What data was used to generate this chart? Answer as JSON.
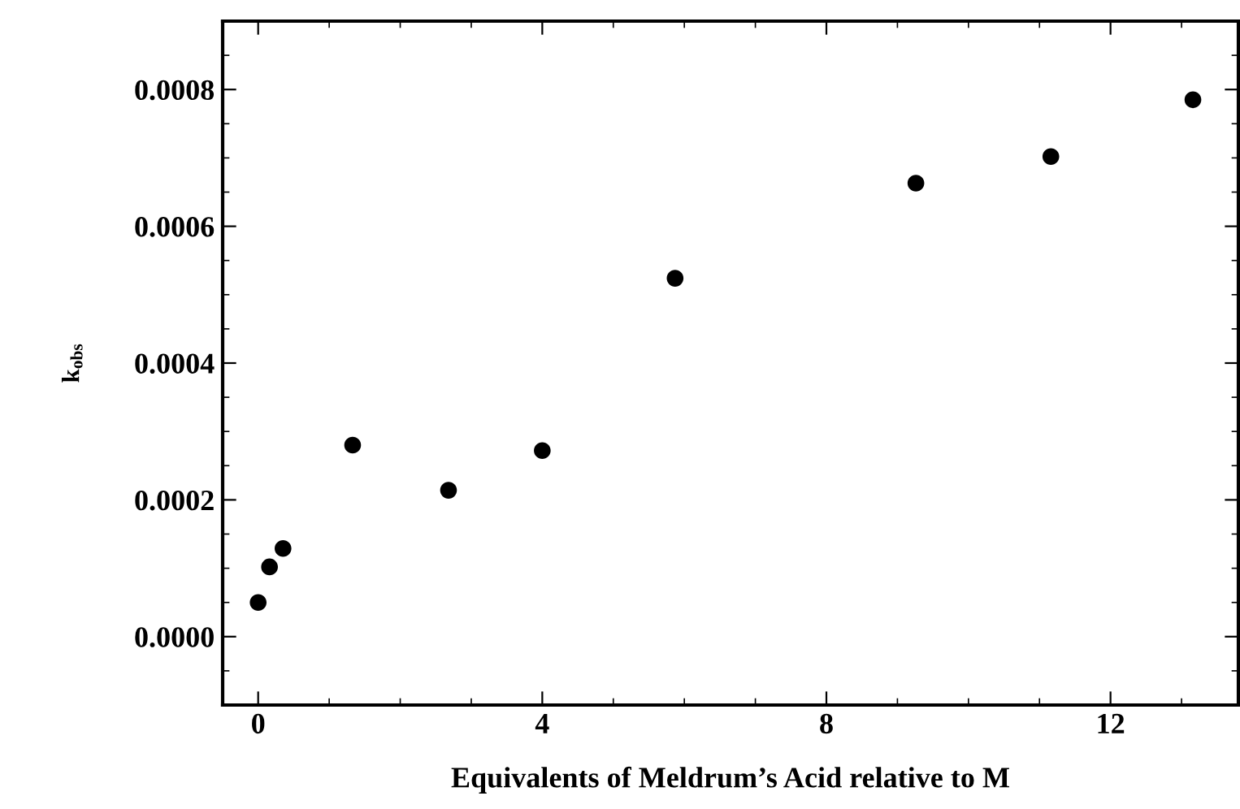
{
  "chart_data": {
    "type": "scatter",
    "xlabel": "Equivalents of Meldrum’s Acid relative to M",
    "ylabel": "k$_{obs}$",
    "x": [
      0,
      0.16,
      0.35,
      1.33,
      2.68,
      4.0,
      5.87,
      9.26,
      11.16,
      13.16
    ],
    "series": [
      {
        "color": "#000000",
        "values": [
          5e-05,
          0.000102,
          0.000129,
          0.00028,
          0.000214,
          0.000272,
          0.000524,
          0.000663,
          0.000702,
          0.000785
        ]
      }
    ],
    "marker": "circle",
    "xlim": [
      -0.5,
      13.8
    ],
    "xticks": [
      0,
      4,
      8,
      12
    ],
    "ylim": [
      -0.0001,
      0.0009
    ],
    "yticks": [
      {
        "value": 0,
        "label": "0.0000"
      },
      {
        "value": 0.0002,
        "label": "0.0002"
      },
      {
        "value": 0.0004,
        "label": "0.0004"
      },
      {
        "value": 0.0006,
        "label": "0.0006"
      },
      {
        "value": 0.0008,
        "label": "0.0008"
      }
    ],
    "grid": false
  }
}
